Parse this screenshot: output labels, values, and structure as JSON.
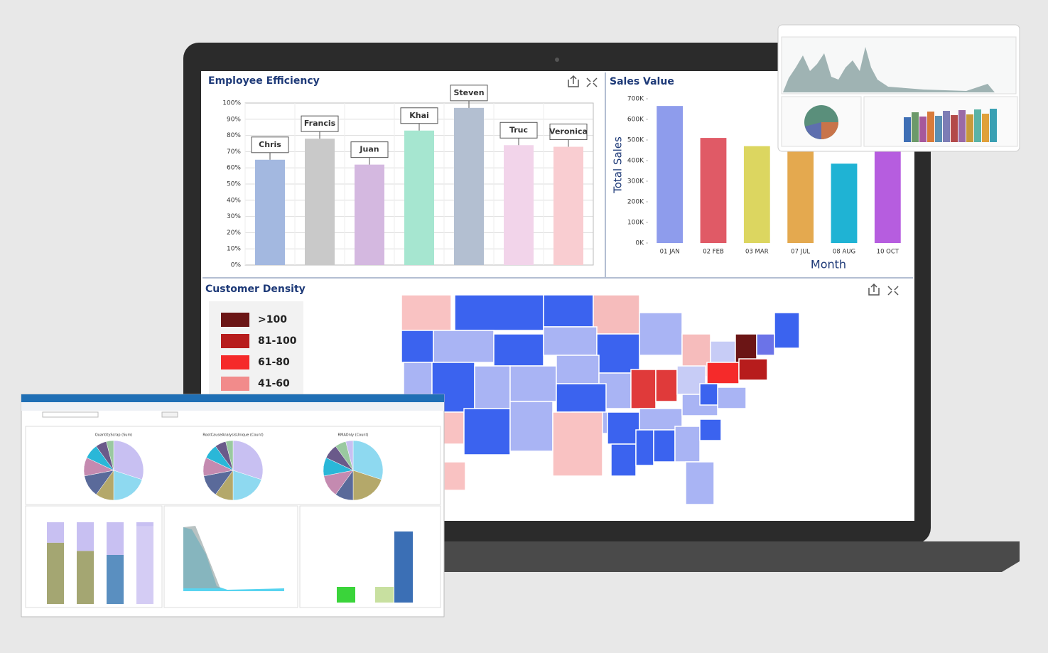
{
  "chart_data": [
    {
      "type": "bar",
      "title": "Employee Efficiency",
      "categories": [
        "Chris",
        "Francis",
        "Juan",
        "Khai",
        "Steven",
        "Truc",
        "Veronica"
      ],
      "values": [
        65,
        78,
        62,
        83,
        97,
        74,
        73
      ],
      "colors": [
        "#a3b8e0",
        "#c9c9c9",
        "#d4b8e0",
        "#a6e6d0",
        "#b3bfd1",
        "#f2d4ea",
        "#f9cdd1"
      ],
      "category_label_position": "top",
      "ylim": [
        0,
        100
      ],
      "yticks": [
        {
          "value": 0,
          "label": "0%"
        },
        {
          "value": 10,
          "label": "10%"
        },
        {
          "value": 20,
          "label": "20%"
        },
        {
          "value": 30,
          "label": "30%"
        },
        {
          "value": 40,
          "label": "40%"
        },
        {
          "value": 50,
          "label": "50%"
        },
        {
          "value": 60,
          "label": "60%"
        },
        {
          "value": 70,
          "label": "70%"
        },
        {
          "value": 80,
          "label": "80%"
        },
        {
          "value": 90,
          "label": "90%"
        },
        {
          "value": 100,
          "label": "100%"
        }
      ],
      "grid": true
    },
    {
      "type": "bar",
      "title": "Sales Value",
      "x_label": "Month",
      "y_label": "Total Sales",
      "categories": [
        "01 JAN",
        "02 FEB",
        "03 MAR",
        "07 JUL",
        "08 AUG",
        "10 OCT"
      ],
      "values": [
        665000,
        510000,
        470000,
        445000,
        385000,
        445000
      ],
      "colors": [
        "#8e9cec",
        "#e05a66",
        "#dcd660",
        "#e4a94f",
        "#1fb3d4",
        "#b65ddf"
      ],
      "category_label_position": "bottom",
      "ylim": [
        0,
        700000
      ],
      "yticks": [
        {
          "value": 0,
          "label": "0K"
        },
        {
          "value": 100000,
          "label": "100K"
        },
        {
          "value": 200000,
          "label": "200K"
        },
        {
          "value": 300000,
          "label": "300K"
        },
        {
          "value": 400000,
          "label": "400K"
        },
        {
          "value": 500000,
          "label": "500K"
        },
        {
          "value": 600000,
          "label": "600K"
        },
        {
          "value": 700000,
          "label": "700K"
        }
      ],
      "grid": false
    },
    {
      "type": "map",
      "title": "Customer Density",
      "legend": [
        {
          "label": ">100",
          "color": "#6b1515"
        },
        {
          "label": "81-100",
          "color": "#b71c1c"
        },
        {
          "label": "61-80",
          "color": "#f52a2a"
        },
        {
          "label": "41-60",
          "color": "#f28b8b"
        }
      ]
    }
  ],
  "overlay_window": {
    "pie_titles": [
      "QuantityScrap (Sum)",
      "RootCauseAnalysisUnique (Count)",
      "RMAOnly (Count)"
    ]
  }
}
